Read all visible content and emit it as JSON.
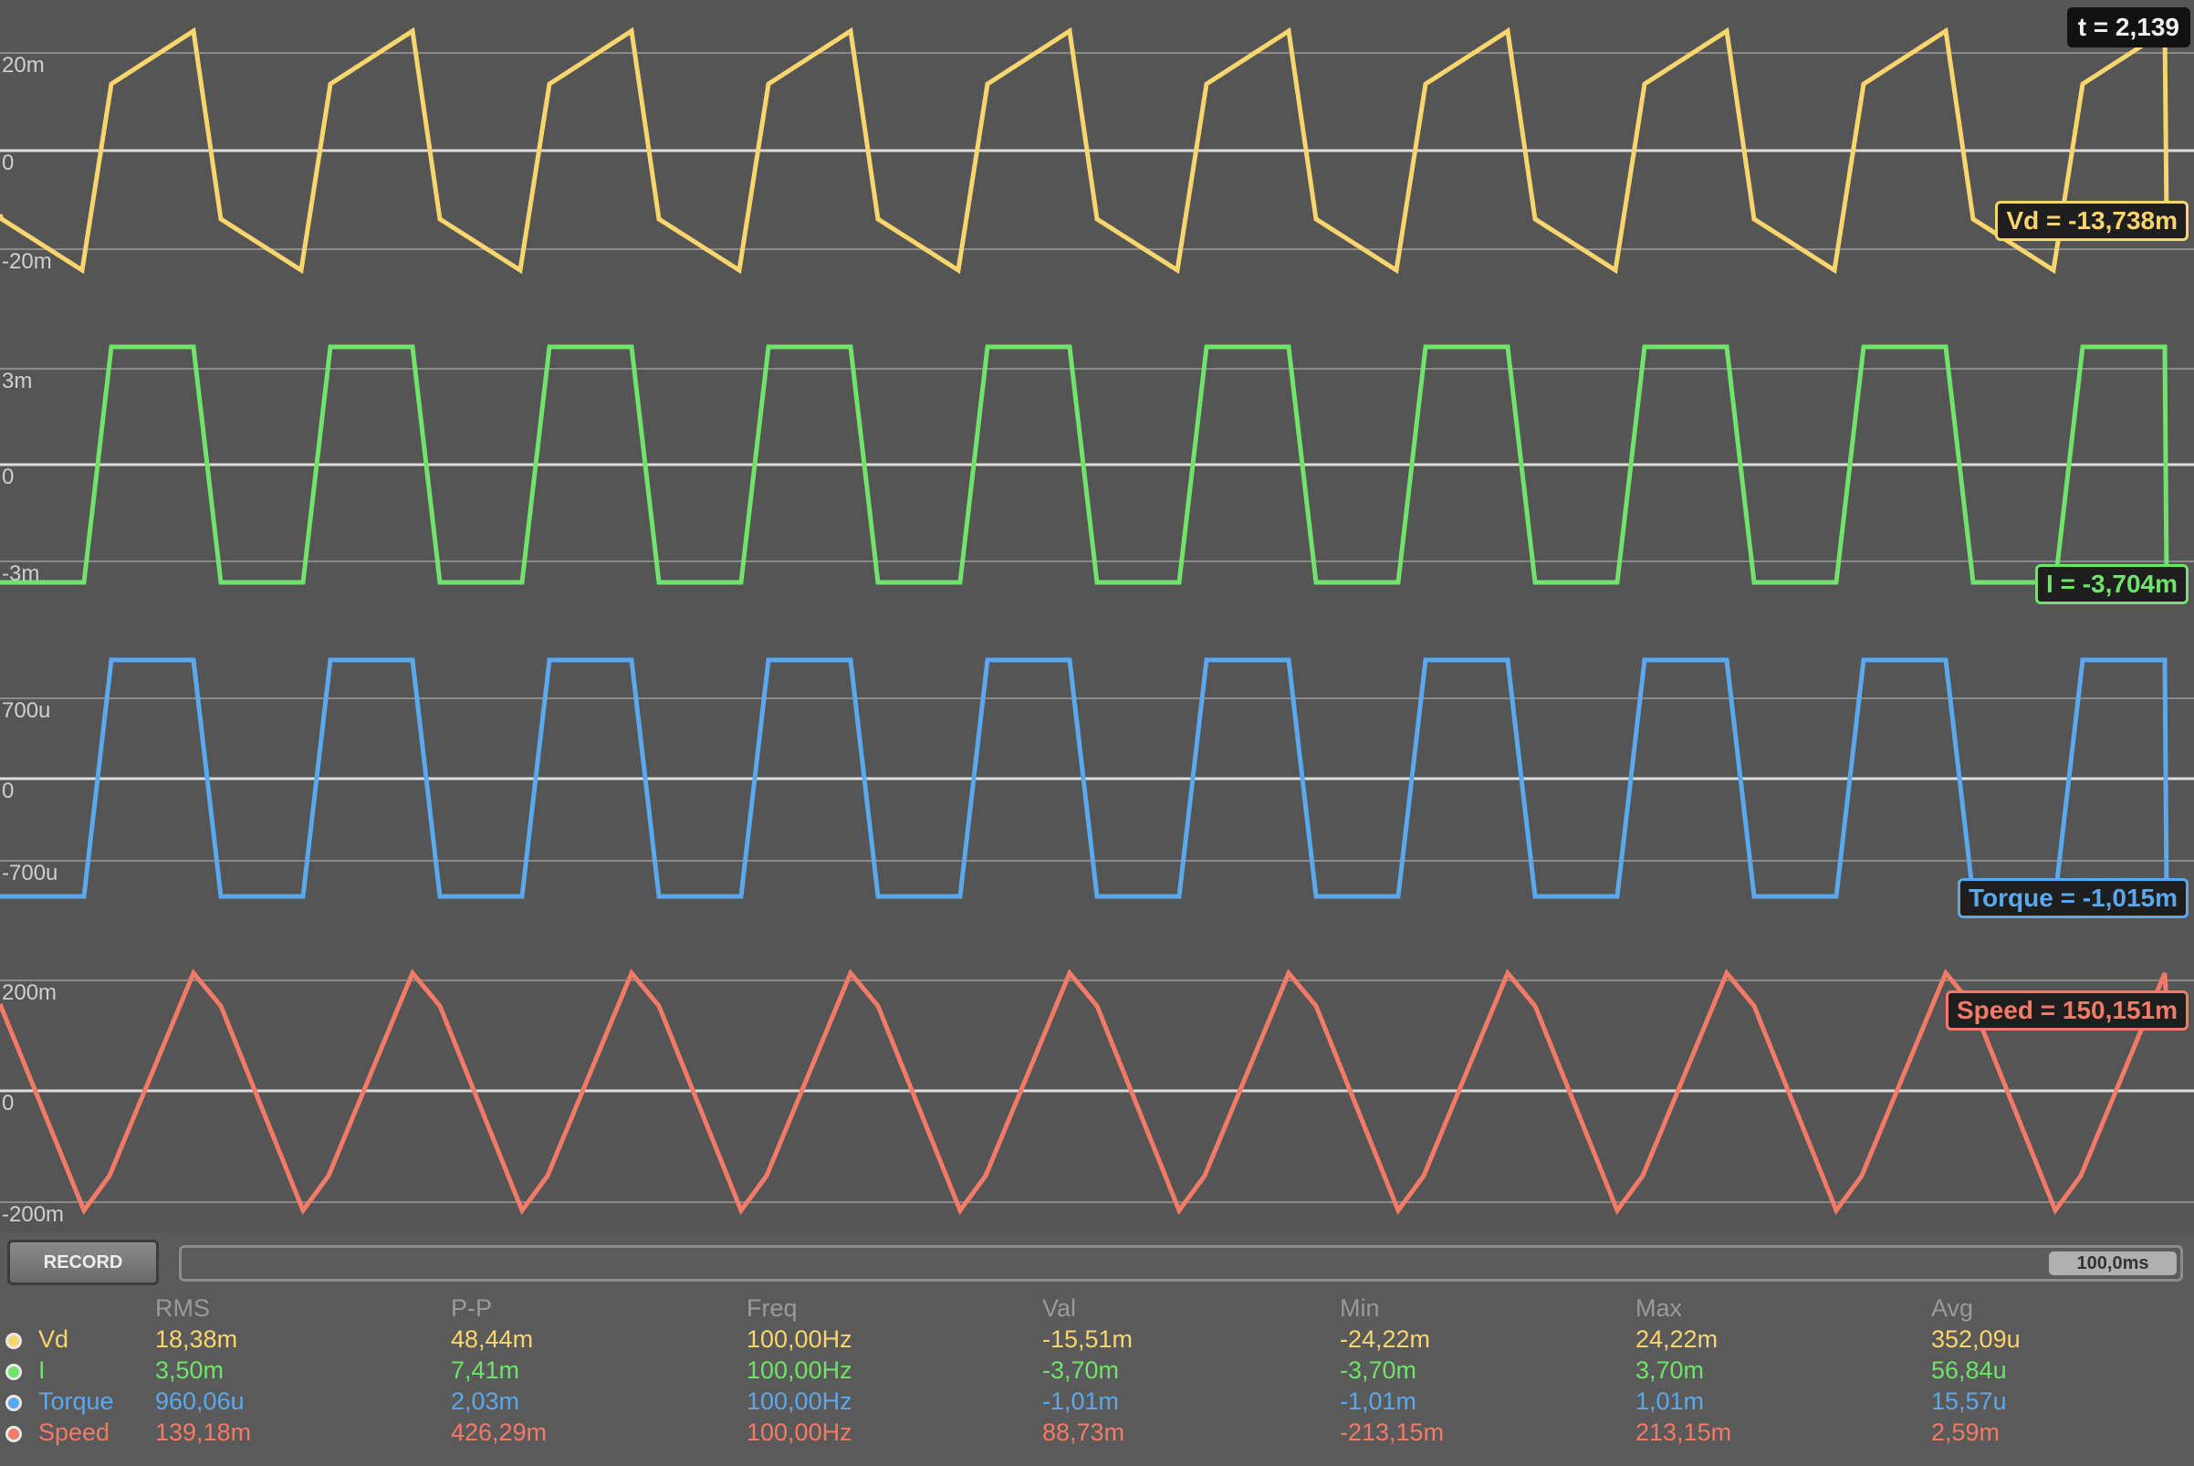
{
  "time_readout": "t = 2,139",
  "timebase": "100,0ms",
  "record_label": "RECORD",
  "columns": [
    "RMS",
    "P-P",
    "Freq",
    "Val",
    "Min",
    "Max",
    "Avg"
  ],
  "channels": [
    {
      "name": "Vd",
      "color": "#f9d56e",
      "waveform": "sawtooth-step",
      "axis_labels": [
        "20m",
        "0",
        "-20m"
      ],
      "cursor_label": "Vd = -13,738m",
      "stats": [
        "18,38m",
        "48,44m",
        "100,00Hz",
        "-15,51m",
        "-24,22m",
        "24,22m",
        "352,09u"
      ]
    },
    {
      "name": "I",
      "color": "#6fe36a",
      "waveform": "trapezoid",
      "axis_labels": [
        "3m",
        "0",
        "-3m"
      ],
      "cursor_label": "I = -3,704m",
      "stats": [
        "3,50m",
        "7,41m",
        "100,00Hz",
        "-3,70m",
        "-3,70m",
        "3,70m",
        "56,84u"
      ]
    },
    {
      "name": "Torque",
      "color": "#5aa8ee",
      "waveform": "trapezoid",
      "axis_labels": [
        "700u",
        "0",
        "-700u"
      ],
      "cursor_label": "Torque = -1,015m",
      "stats": [
        "960,06u",
        "2,03m",
        "100,00Hz",
        "-1,01m",
        "-1,01m",
        "1,01m",
        "15,57u"
      ]
    },
    {
      "name": "Speed",
      "color": "#f27a66",
      "waveform": "triangle",
      "axis_labels": [
        "200m",
        "0",
        "-200m"
      ],
      "cursor_label": "Speed = 150,151m",
      "stats": [
        "139,18m",
        "426,29m",
        "100,00Hz",
        "88,73m",
        "-213,15m",
        "213,15m",
        "2,59m"
      ]
    }
  ]
}
